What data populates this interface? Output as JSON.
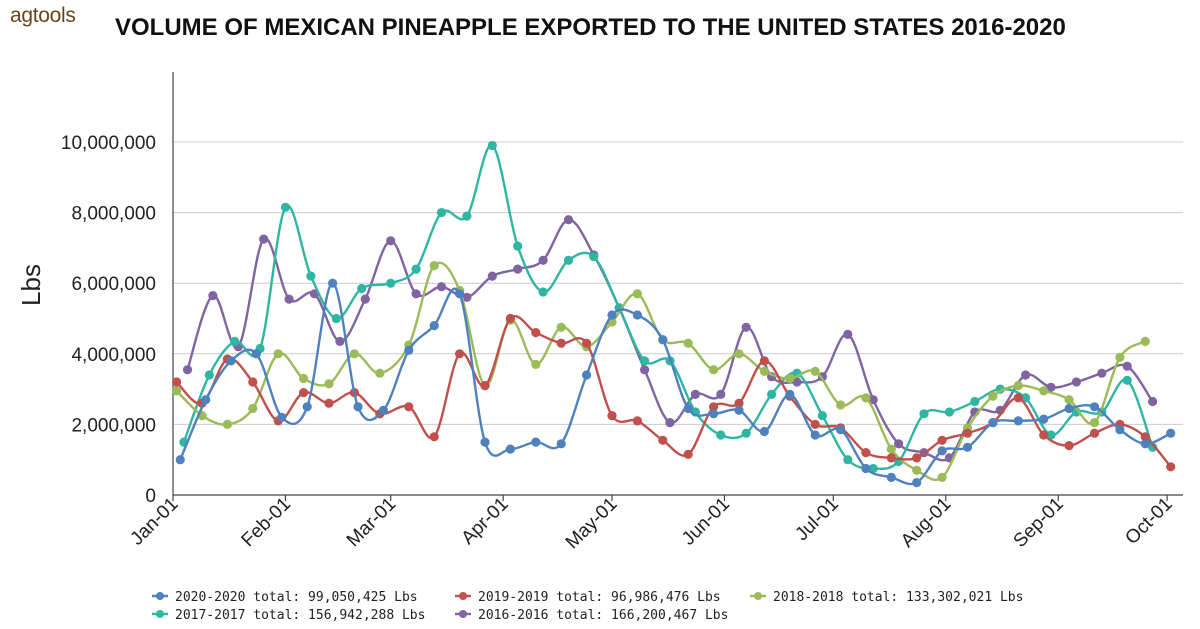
{
  "brand": {
    "logo_text": "agtools"
  },
  "chart_data": {
    "type": "line",
    "title": "VOLUME OF MEXICAN PINEAPPLE EXPORTED TO THE UNITED STATES 2016-2020",
    "xlabel": "",
    "ylabel": "Lbs",
    "ylim": [
      0,
      11400000
    ],
    "yticks": [
      0,
      2000000,
      4000000,
      6000000,
      8000000,
      10000000
    ],
    "ytick_labels": [
      "0",
      "2,000,000",
      "4,000,000",
      "6,000,000",
      "8,000,000",
      "10,000,000"
    ],
    "xlim": [
      "01-01",
      "10-03"
    ],
    "xticks": [
      "01-01",
      "02-01",
      "03-01",
      "04-01",
      "05-01",
      "06-01",
      "07-01",
      "08-01",
      "09-01",
      "10-01"
    ],
    "xtick_labels": [
      "Jan-01",
      "Feb-01",
      "Mar-01",
      "Apr-01",
      "May-01",
      "Jun-01",
      "Jul-01",
      "Aug-01",
      "Sep-01",
      "Oct-01"
    ],
    "grid": true,
    "legend_position": "bottom",
    "series": [
      {
        "name": "2020-2020 total: 99,050,425 Lbs",
        "color": "#4f81bd",
        "points": [
          [
            "01-03",
            1000000
          ],
          [
            "01-10",
            2700000
          ],
          [
            "01-17",
            3800000
          ],
          [
            "01-24",
            4000000
          ],
          [
            "01-31",
            2200000
          ],
          [
            "02-07",
            2500000
          ],
          [
            "02-14",
            6000000
          ],
          [
            "02-21",
            2500000
          ],
          [
            "02-28",
            2400000
          ],
          [
            "03-06",
            4100000
          ],
          [
            "03-13",
            4800000
          ],
          [
            "03-20",
            5700000
          ],
          [
            "03-27",
            1500000
          ],
          [
            "04-03",
            1300000
          ],
          [
            "04-10",
            1500000
          ],
          [
            "04-17",
            1450000
          ],
          [
            "04-24",
            3400000
          ],
          [
            "05-01",
            5100000
          ],
          [
            "05-08",
            5100000
          ],
          [
            "05-15",
            4400000
          ],
          [
            "05-22",
            2450000
          ],
          [
            "05-29",
            2300000
          ],
          [
            "06-05",
            2400000
          ],
          [
            "06-12",
            1800000
          ],
          [
            "06-19",
            2850000
          ],
          [
            "06-26",
            1700000
          ],
          [
            "07-03",
            1850000
          ],
          [
            "07-10",
            750000
          ],
          [
            "07-17",
            500000
          ],
          [
            "07-24",
            350000
          ],
          [
            "07-31",
            1250000
          ],
          [
            "08-07",
            1350000
          ],
          [
            "08-14",
            2050000
          ],
          [
            "08-21",
            2100000
          ],
          [
            "08-28",
            2150000
          ],
          [
            "09-04",
            2450000
          ],
          [
            "09-11",
            2500000
          ],
          [
            "09-18",
            1850000
          ],
          [
            "09-25",
            1450000
          ],
          [
            "10-02",
            1750000
          ]
        ]
      },
      {
        "name": "2019-2019 total: 96,986,476 Lbs",
        "color": "#c0504d",
        "points": [
          [
            "01-02",
            3200000
          ],
          [
            "01-09",
            2600000
          ],
          [
            "01-16",
            3850000
          ],
          [
            "01-23",
            3200000
          ],
          [
            "01-30",
            2100000
          ],
          [
            "02-06",
            2900000
          ],
          [
            "02-13",
            2600000
          ],
          [
            "02-20",
            2900000
          ],
          [
            "02-27",
            2300000
          ],
          [
            "03-06",
            2500000
          ],
          [
            "03-13",
            1650000
          ],
          [
            "03-20",
            4000000
          ],
          [
            "03-27",
            3100000
          ],
          [
            "04-03",
            5000000
          ],
          [
            "04-10",
            4600000
          ],
          [
            "04-17",
            4300000
          ],
          [
            "04-24",
            4300000
          ],
          [
            "05-01",
            2250000
          ],
          [
            "05-08",
            2100000
          ],
          [
            "05-15",
            1550000
          ],
          [
            "05-22",
            1150000
          ],
          [
            "05-29",
            2500000
          ],
          [
            "06-05",
            2600000
          ],
          [
            "06-12",
            3800000
          ],
          [
            "06-19",
            2800000
          ],
          [
            "06-26",
            2000000
          ],
          [
            "07-03",
            1900000
          ],
          [
            "07-10",
            1200000
          ],
          [
            "07-17",
            1050000
          ],
          [
            "07-24",
            1050000
          ],
          [
            "07-31",
            1550000
          ],
          [
            "08-07",
            1750000
          ],
          [
            "08-14",
            2050000
          ],
          [
            "08-21",
            2750000
          ],
          [
            "08-28",
            1700000
          ],
          [
            "09-04",
            1400000
          ],
          [
            "09-11",
            1750000
          ],
          [
            "09-18",
            2000000
          ],
          [
            "09-25",
            1650000
          ],
          [
            "10-02",
            800000
          ]
        ]
      },
      {
        "name": "2018-2018 total: 133,302,021 Lbs",
        "color": "#9bbb59",
        "points": [
          [
            "01-02",
            2950000
          ],
          [
            "01-09",
            2250000
          ],
          [
            "01-16",
            2000000
          ],
          [
            "01-23",
            2450000
          ],
          [
            "01-30",
            4000000
          ],
          [
            "02-06",
            3300000
          ],
          [
            "02-13",
            3150000
          ],
          [
            "02-20",
            4000000
          ],
          [
            "02-27",
            3450000
          ],
          [
            "03-06",
            4250000
          ],
          [
            "03-13",
            6500000
          ],
          [
            "03-20",
            5800000
          ],
          [
            "03-27",
            3100000
          ],
          [
            "04-03",
            4950000
          ],
          [
            "04-10",
            3700000
          ],
          [
            "04-17",
            4750000
          ],
          [
            "04-24",
            4200000
          ],
          [
            "05-01",
            4900000
          ],
          [
            "05-08",
            5700000
          ],
          [
            "05-15",
            4400000
          ],
          [
            "05-22",
            4300000
          ],
          [
            "05-29",
            3550000
          ],
          [
            "06-05",
            4000000
          ],
          [
            "06-12",
            3500000
          ],
          [
            "06-19",
            3300000
          ],
          [
            "06-26",
            3500000
          ],
          [
            "07-03",
            2550000
          ],
          [
            "07-10",
            2750000
          ],
          [
            "07-17",
            1300000
          ],
          [
            "07-24",
            700000
          ],
          [
            "07-31",
            500000
          ],
          [
            "08-07",
            1900000
          ],
          [
            "08-14",
            2800000
          ],
          [
            "08-21",
            3100000
          ],
          [
            "08-28",
            2950000
          ],
          [
            "09-04",
            2700000
          ],
          [
            "09-11",
            2050000
          ],
          [
            "09-18",
            3900000
          ],
          [
            "09-25",
            4350000
          ]
        ]
      },
      {
        "name": "2017-2017 total: 156,942,288 Lbs",
        "color": "#2fb6a2",
        "points": [
          [
            "01-04",
            1500000
          ],
          [
            "01-11",
            3400000
          ],
          [
            "01-18",
            4350000
          ],
          [
            "01-25",
            4150000
          ],
          [
            "02-01",
            8150000
          ],
          [
            "02-08",
            6200000
          ],
          [
            "02-15",
            5000000
          ],
          [
            "02-22",
            5850000
          ],
          [
            "03-01",
            6000000
          ],
          [
            "03-08",
            6400000
          ],
          [
            "03-15",
            8000000
          ],
          [
            "03-22",
            7900000
          ],
          [
            "03-29",
            9900000
          ],
          [
            "04-05",
            7050000
          ],
          [
            "04-12",
            5750000
          ],
          [
            "04-19",
            6650000
          ],
          [
            "04-26",
            6750000
          ],
          [
            "05-03",
            5300000
          ],
          [
            "05-10",
            3800000
          ],
          [
            "05-17",
            3800000
          ],
          [
            "05-24",
            2350000
          ],
          [
            "05-31",
            1700000
          ],
          [
            "06-07",
            1750000
          ],
          [
            "06-14",
            2850000
          ],
          [
            "06-21",
            3450000
          ],
          [
            "06-28",
            2250000
          ],
          [
            "07-05",
            1000000
          ],
          [
            "07-12",
            750000
          ],
          [
            "07-19",
            950000
          ],
          [
            "07-26",
            2300000
          ],
          [
            "08-02",
            2350000
          ],
          [
            "08-09",
            2650000
          ],
          [
            "08-16",
            3000000
          ],
          [
            "08-23",
            2750000
          ],
          [
            "08-30",
            1700000
          ],
          [
            "09-06",
            2350000
          ],
          [
            "09-13",
            2350000
          ],
          [
            "09-20",
            3250000
          ],
          [
            "09-27",
            1350000
          ]
        ]
      },
      {
        "name": "2016-2016 total: 166,200,467 Lbs",
        "color": "#8064a2",
        "points": [
          [
            "01-05",
            3550000
          ],
          [
            "01-12",
            5650000
          ],
          [
            "01-19",
            4200000
          ],
          [
            "01-26",
            7250000
          ],
          [
            "02-02",
            5550000
          ],
          [
            "02-09",
            5700000
          ],
          [
            "02-16",
            4350000
          ],
          [
            "02-23",
            5550000
          ],
          [
            "03-01",
            7200000
          ],
          [
            "03-08",
            5700000
          ],
          [
            "03-15",
            5900000
          ],
          [
            "03-22",
            5600000
          ],
          [
            "03-29",
            6200000
          ],
          [
            "04-05",
            6400000
          ],
          [
            "04-12",
            6650000
          ],
          [
            "04-19",
            7800000
          ],
          [
            "04-26",
            6800000
          ],
          [
            "05-03",
            5300000
          ],
          [
            "05-10",
            3550000
          ],
          [
            "05-17",
            2050000
          ],
          [
            "05-24",
            2850000
          ],
          [
            "05-31",
            2850000
          ],
          [
            "06-07",
            4750000
          ],
          [
            "06-14",
            3350000
          ],
          [
            "06-21",
            3200000
          ],
          [
            "06-28",
            3350000
          ],
          [
            "07-05",
            4550000
          ],
          [
            "07-12",
            2700000
          ],
          [
            "07-19",
            1450000
          ],
          [
            "07-26",
            1200000
          ],
          [
            "08-02",
            1050000
          ],
          [
            "08-09",
            2350000
          ],
          [
            "08-16",
            2400000
          ],
          [
            "08-23",
            3400000
          ],
          [
            "08-30",
            3050000
          ],
          [
            "09-06",
            3200000
          ],
          [
            "09-13",
            3450000
          ],
          [
            "09-20",
            3650000
          ],
          [
            "09-27",
            2650000
          ]
        ]
      }
    ]
  }
}
